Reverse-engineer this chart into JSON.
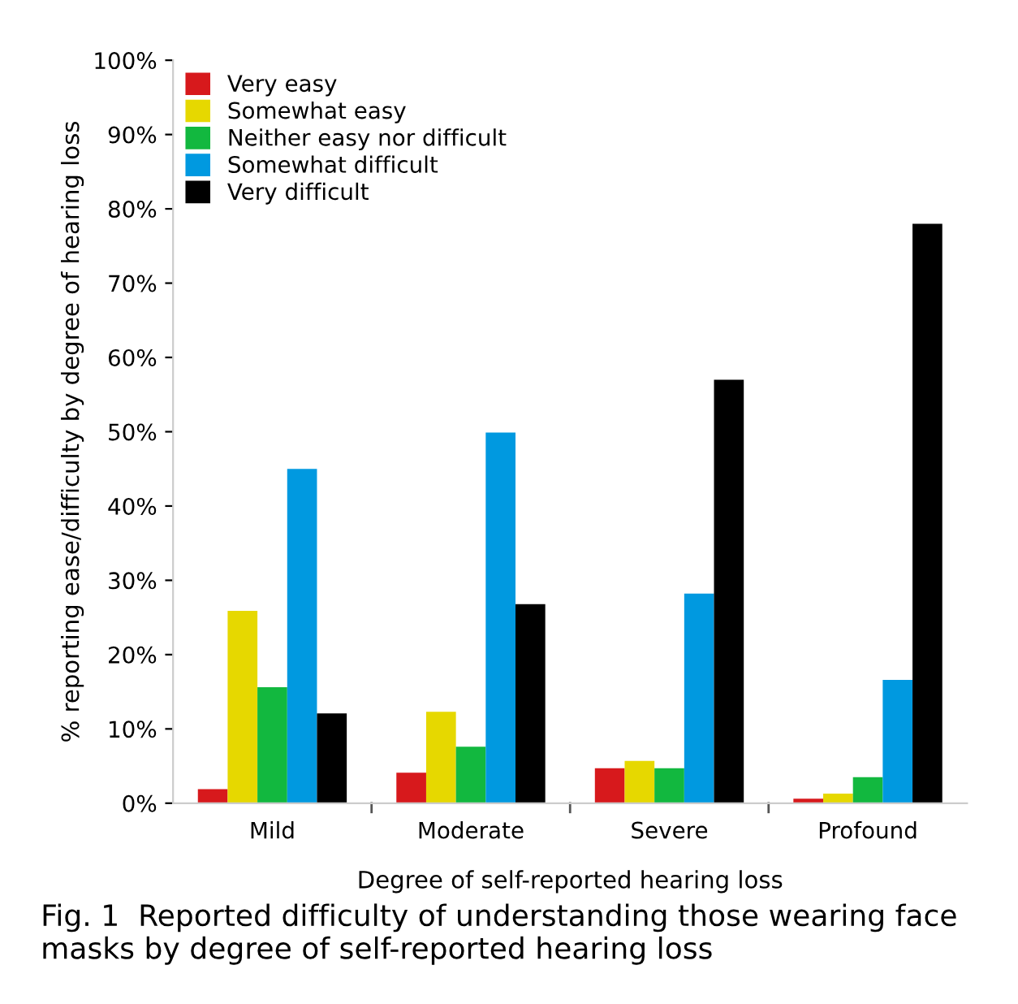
{
  "chart_data": {
    "type": "bar",
    "categories": [
      "Mild",
      "Moderate",
      "Severe",
      "Profound"
    ],
    "series": [
      {
        "name": "Very easy",
        "color": "#d7191c",
        "values": [
          1.9,
          4.1,
          4.7,
          0.6
        ]
      },
      {
        "name": "Somewhat easy",
        "color": "#e6d800",
        "values": [
          25.9,
          12.3,
          5.7,
          1.3
        ]
      },
      {
        "name": "Neither easy nor difficult",
        "color": "#12b83f",
        "values": [
          15.6,
          7.6,
          4.7,
          3.5
        ]
      },
      {
        "name": "Somewhat difficult",
        "color": "#0099e0",
        "values": [
          45.0,
          49.9,
          28.2,
          16.6
        ]
      },
      {
        "name": "Very difficult",
        "color": "#000000",
        "values": [
          12.1,
          26.8,
          57.0,
          78.0
        ]
      }
    ],
    "xlabel": "Degree of self-reported hearing loss",
    "ylabel": "% reporting ease/difficulty by degree of hearing loss",
    "ylim": [
      0,
      100
    ],
    "yticks": [
      {
        "value": 0,
        "label": "0%"
      },
      {
        "value": 10,
        "label": "10%"
      },
      {
        "value": 20,
        "label": "20%"
      },
      {
        "value": 30,
        "label": "30%"
      },
      {
        "value": 40,
        "label": "40%"
      },
      {
        "value": 50,
        "label": "50%"
      },
      {
        "value": 60,
        "label": "60%"
      },
      {
        "value": 70,
        "label": "70%"
      },
      {
        "value": 80,
        "label": "80%"
      },
      {
        "value": 90,
        "label": "90%"
      },
      {
        "value": 100,
        "label": "100%"
      }
    ],
    "legend": "top left",
    "grid": false,
    "annotations": [
      "Fig. 1  Reported difficulty of understanding those wearing face masks by degree of self-reported hearing loss"
    ]
  }
}
